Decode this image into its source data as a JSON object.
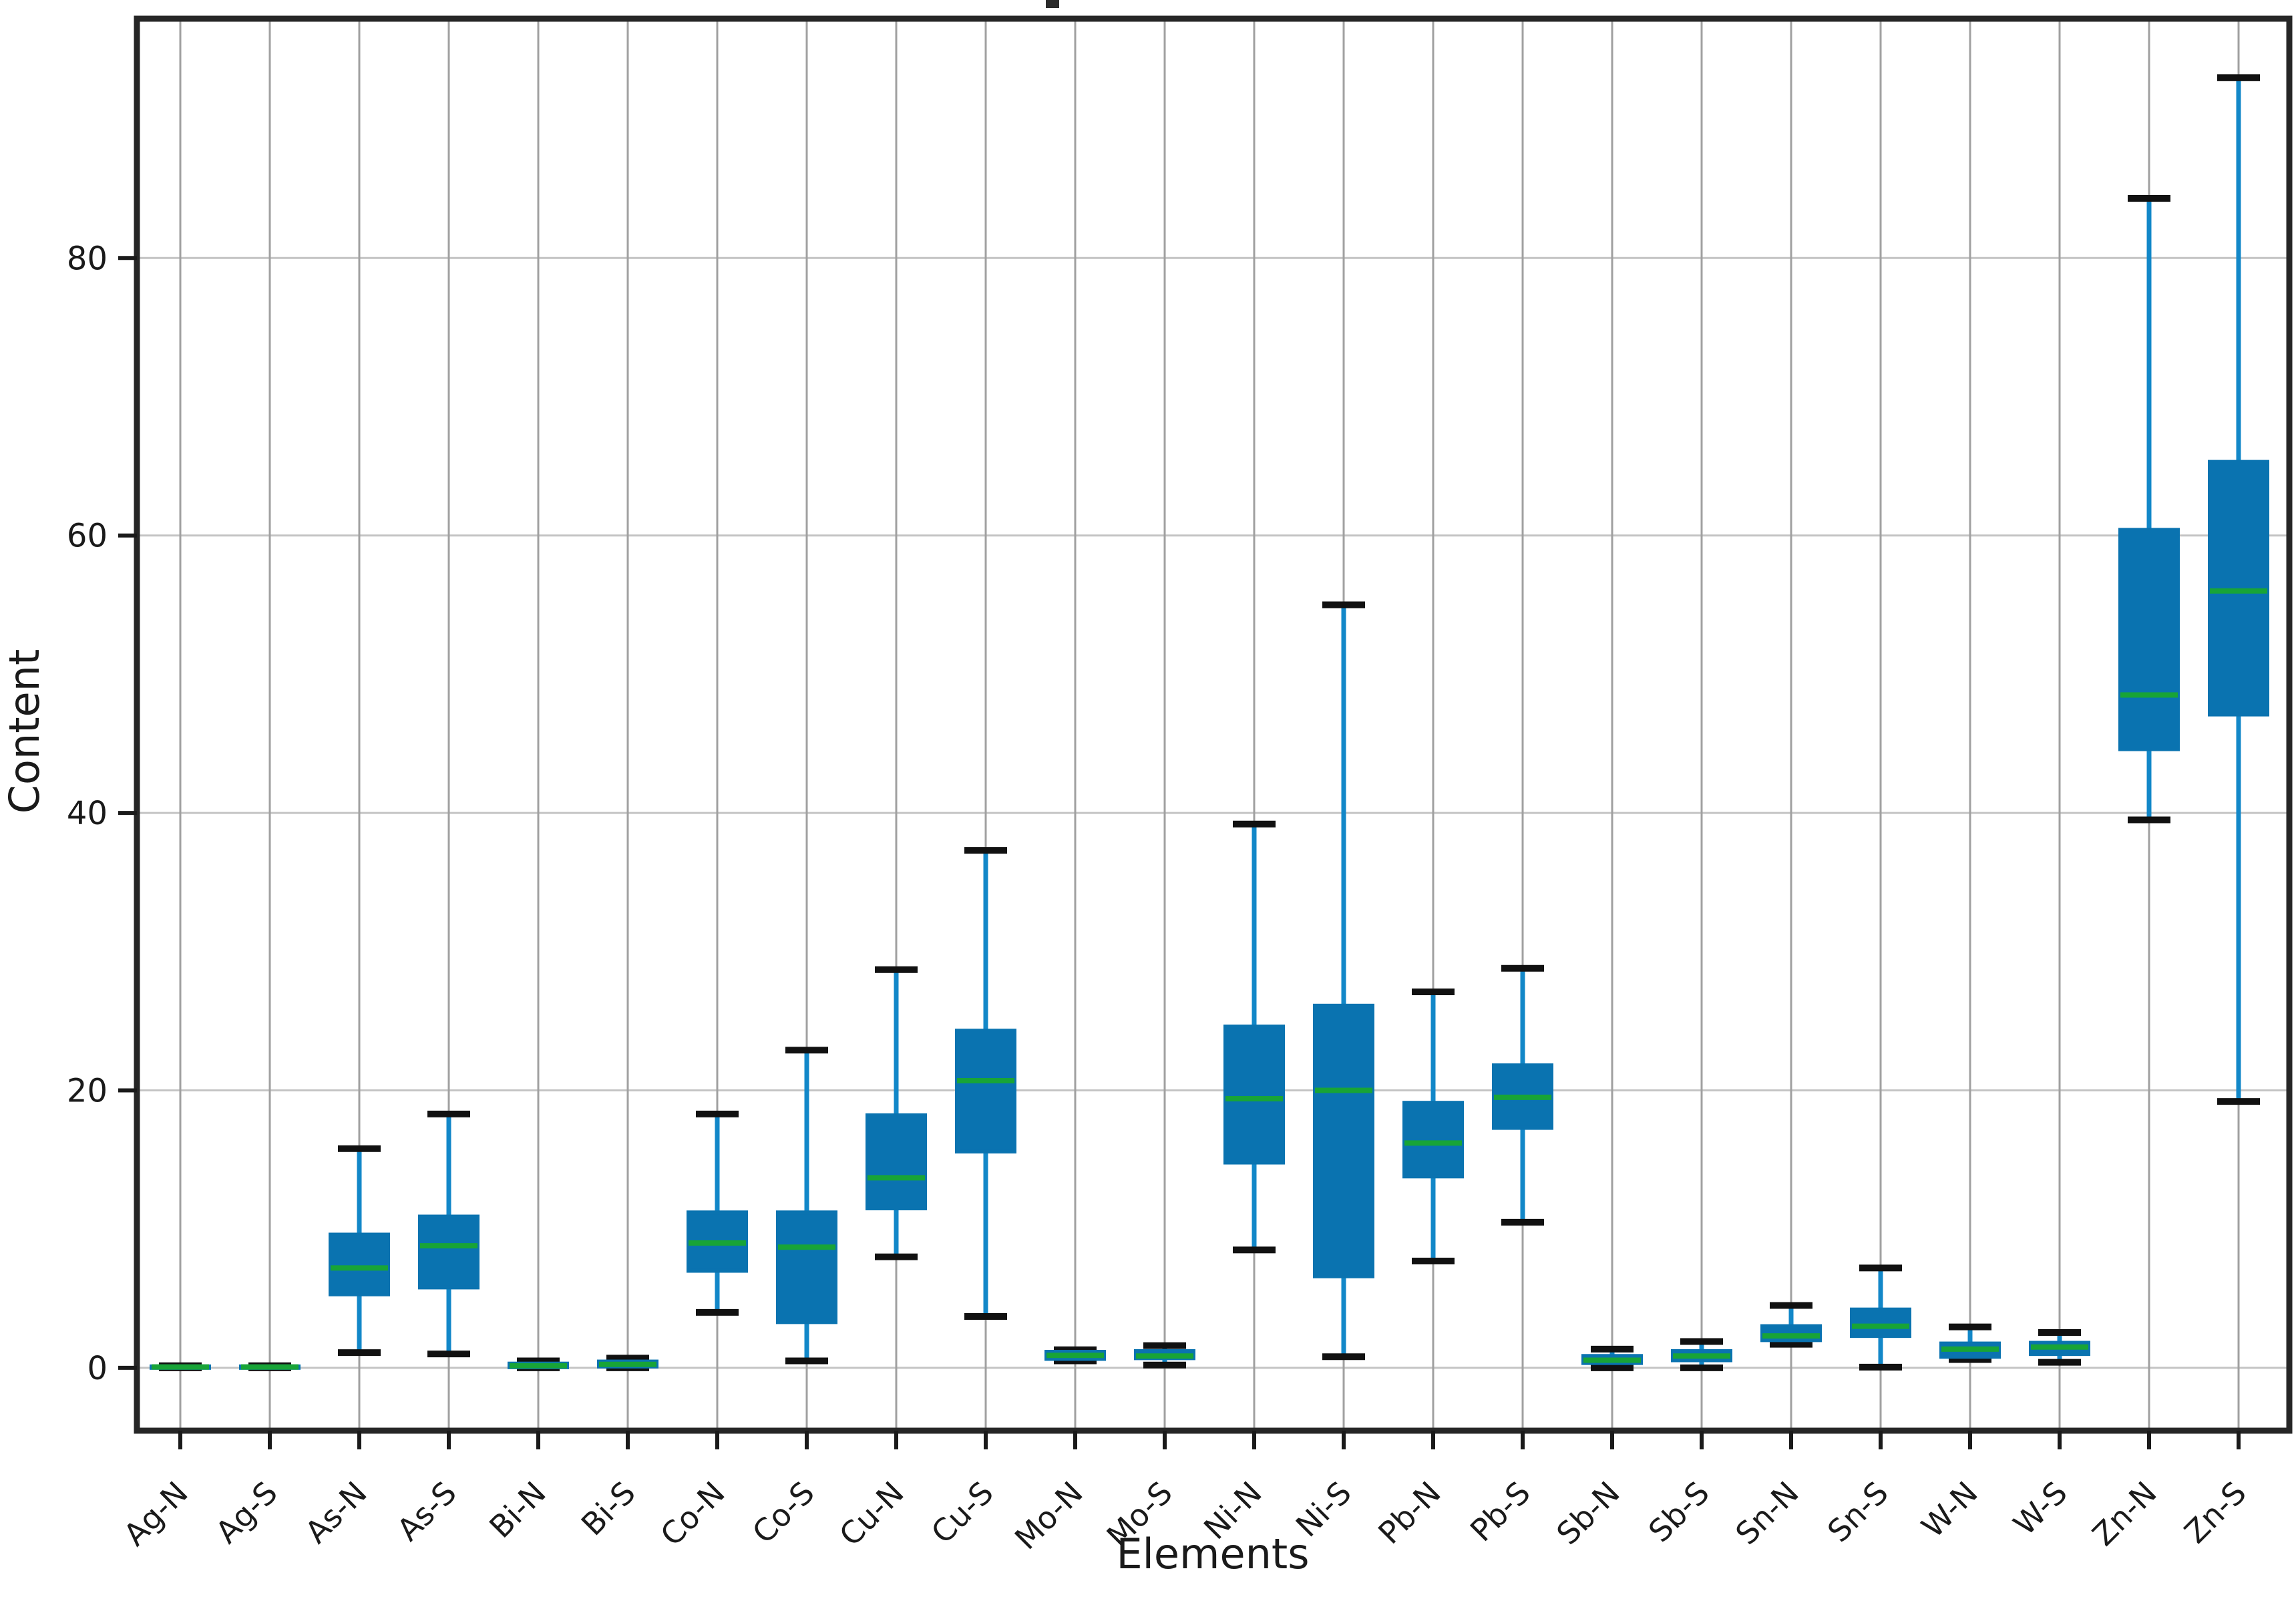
{
  "figure": {
    "background": "#ffffff",
    "title_clipped_remnant": true
  },
  "colors": {
    "box_fill": "#0a73b0",
    "box_edge": "#0a73b0",
    "whisker": "#1287c8",
    "median": "#18a437",
    "cap": "#111111",
    "grid_vertical": "#a0a0a0",
    "grid_horizontal": "#c4c4c4",
    "spine": "#262626",
    "tick": "#1a1a1a"
  },
  "chart_data": {
    "type": "box",
    "title": "",
    "xlabel": "Elements",
    "ylabel": "Content",
    "ylim": [
      -4.53,
      97.25
    ],
    "y_ticks": [
      0,
      20,
      40,
      60,
      80
    ],
    "grid": "both",
    "legend": "none",
    "categories": [
      "Ag-N",
      "Ag-S",
      "As-N",
      "As-S",
      "Bi-N",
      "Bi-S",
      "Co-N",
      "Co-S",
      "Cu-N",
      "Cu-S",
      "Mo-N",
      "Mo-S",
      "Ni-N",
      "Ni-S",
      "Pb-N",
      "Pb-S",
      "Sb-N",
      "Sb-S",
      "Sn-N",
      "Sn-S",
      "W-N",
      "W-S",
      "Zn-N",
      "Zn-S"
    ],
    "boxes": [
      {
        "label": "Ag-N",
        "whislo": 0.0,
        "q1": 0.02,
        "med": 0.06,
        "q3": 0.1,
        "whishi": 0.15
      },
      {
        "label": "Ag-S",
        "whislo": 0.0,
        "q1": 0.02,
        "med": 0.06,
        "q3": 0.1,
        "whishi": 0.15
      },
      {
        "label": "As-N",
        "whislo": 1.1,
        "q1": 5.3,
        "med": 7.2,
        "q3": 9.6,
        "whishi": 15.8
      },
      {
        "label": "As-S",
        "whislo": 1.0,
        "q1": 5.8,
        "med": 8.8,
        "q3": 10.9,
        "whishi": 18.3
      },
      {
        "label": "Bi-N",
        "whislo": 0.0,
        "q1": 0.05,
        "med": 0.15,
        "q3": 0.3,
        "whishi": 0.5
      },
      {
        "label": "Bi-S",
        "whislo": 0.0,
        "q1": 0.1,
        "med": 0.25,
        "q3": 0.45,
        "whishi": 0.7
      },
      {
        "label": "Co-N",
        "whislo": 4.0,
        "q1": 7.0,
        "med": 9.0,
        "q3": 11.2,
        "whishi": 18.3
      },
      {
        "label": "Co-S",
        "whislo": 0.5,
        "q1": 3.3,
        "med": 8.7,
        "q3": 11.2,
        "whishi": 22.9
      },
      {
        "label": "Cu-N",
        "whislo": 8.0,
        "q1": 11.5,
        "med": 13.7,
        "q3": 18.2,
        "whishi": 28.7
      },
      {
        "label": "Cu-S",
        "whislo": 3.7,
        "q1": 15.6,
        "med": 20.7,
        "q3": 24.3,
        "whishi": 37.3
      },
      {
        "label": "Mo-N",
        "whislo": 0.5,
        "q1": 0.65,
        "med": 0.9,
        "q3": 1.15,
        "whishi": 1.3
      },
      {
        "label": "Mo-S",
        "whislo": 0.2,
        "q1": 0.7,
        "med": 0.85,
        "q3": 1.2,
        "whishi": 1.6
      },
      {
        "label": "Ni-N",
        "whislo": 8.5,
        "q1": 14.8,
        "med": 19.4,
        "q3": 24.6,
        "whishi": 39.2
      },
      {
        "label": "Ni-S",
        "whislo": 0.8,
        "q1": 6.6,
        "med": 20.0,
        "q3": 26.1,
        "whishi": 55.0
      },
      {
        "label": "Pb-N",
        "whislo": 7.7,
        "q1": 13.8,
        "med": 16.2,
        "q3": 19.1,
        "whishi": 27.1
      },
      {
        "label": "Pb-S",
        "whislo": 10.5,
        "q1": 17.3,
        "med": 19.5,
        "q3": 21.8,
        "whishi": 28.8
      },
      {
        "label": "Sb-N",
        "whislo": 0.0,
        "q1": 0.35,
        "med": 0.55,
        "q3": 0.85,
        "whishi": 1.35
      },
      {
        "label": "Sb-S",
        "whislo": 0.0,
        "q1": 0.55,
        "med": 0.85,
        "q3": 1.2,
        "whishi": 1.9
      },
      {
        "label": "Sn-N",
        "whislo": 1.7,
        "q1": 2.0,
        "med": 2.3,
        "q3": 3.0,
        "whishi": 4.5
      },
      {
        "label": "Sn-S",
        "whislo": 0.05,
        "q1": 2.3,
        "med": 3.0,
        "q3": 4.2,
        "whishi": 7.2
      },
      {
        "label": "W-N",
        "whislo": 0.6,
        "q1": 0.8,
        "med": 1.35,
        "q3": 1.75,
        "whishi": 2.95
      },
      {
        "label": "W-S",
        "whislo": 0.4,
        "q1": 1.0,
        "med": 1.5,
        "q3": 1.8,
        "whishi": 2.55
      },
      {
        "label": "Zn-N",
        "whislo": 39.5,
        "q1": 44.6,
        "med": 48.5,
        "q3": 60.4,
        "whishi": 84.3
      },
      {
        "label": "Zn-S",
        "whislo": 19.2,
        "q1": 47.1,
        "med": 56.0,
        "q3": 65.3,
        "whishi": 93.0
      }
    ]
  }
}
